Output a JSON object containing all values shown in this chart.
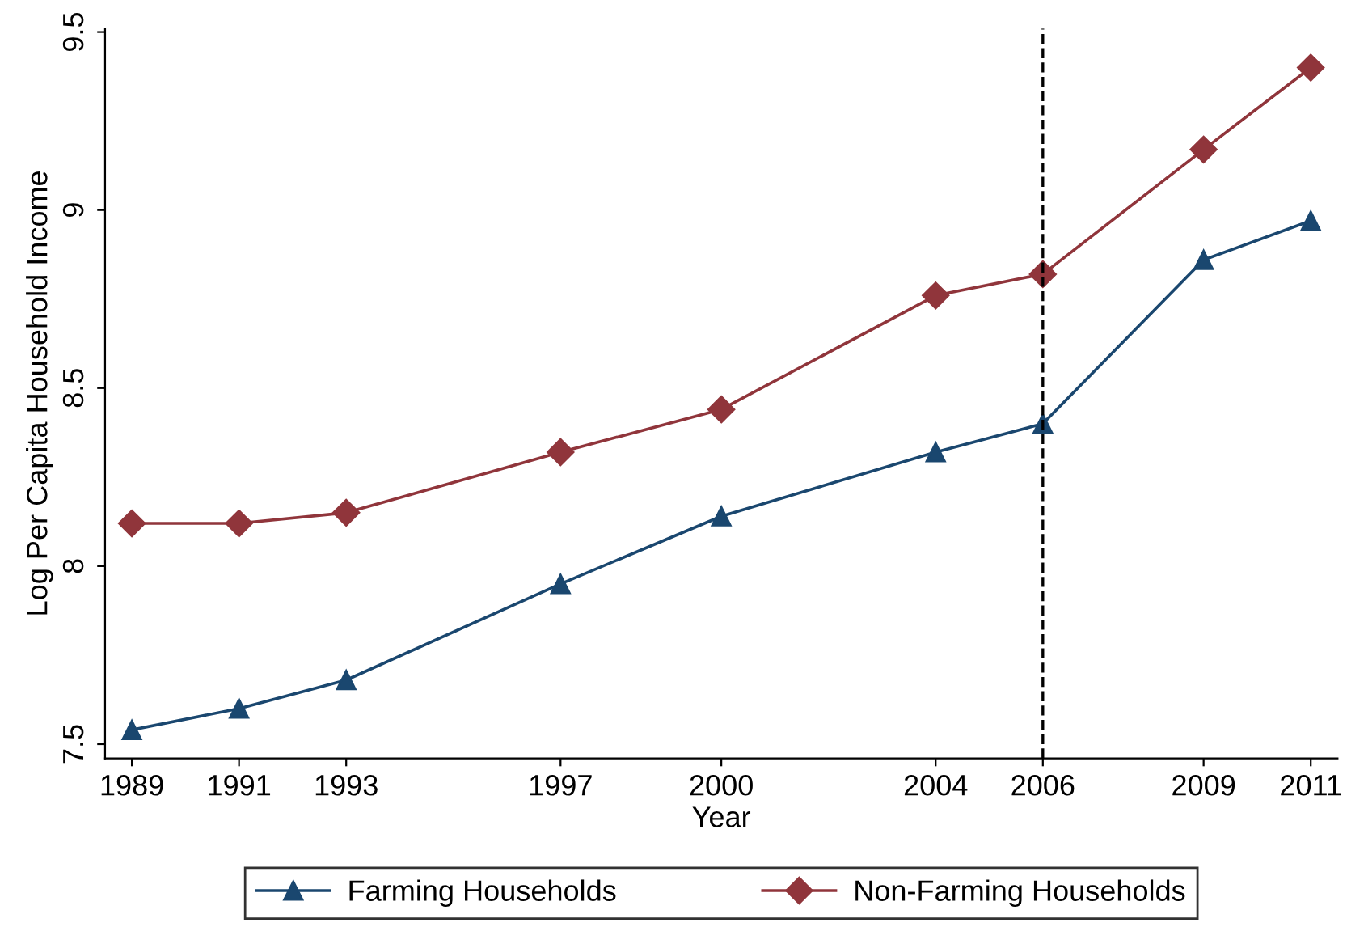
{
  "chart_data": {
    "type": "line",
    "xlabel": "Year",
    "ylabel": "Log Per Capita Household Income",
    "x": [
      1989,
      1991,
      1993,
      1997,
      2000,
      2004,
      2006,
      2009,
      2011
    ],
    "series": [
      {
        "name": "Farming Households",
        "color": "#1a476f",
        "marker": "triangle",
        "values": [
          7.54,
          7.6,
          7.68,
          7.95,
          8.14,
          8.32,
          8.4,
          8.86,
          8.97
        ]
      },
      {
        "name": "Non-Farming Households",
        "color": "#90353b",
        "marker": "diamond",
        "values": [
          8.12,
          8.12,
          8.15,
          8.32,
          8.44,
          8.76,
          8.82,
          9.17,
          9.4
        ]
      }
    ],
    "xlim": [
      1988.5,
      2011.5
    ],
    "ylim": [
      7.46,
      9.51
    ],
    "xticks": [
      1989,
      1991,
      1993,
      1997,
      2000,
      2004,
      2006,
      2009,
      2011
    ],
    "yticks": [
      7.5,
      8,
      8.5,
      9,
      9.5
    ],
    "ref_lines": [
      {
        "axis": "x",
        "value": 2006,
        "color": "#000000",
        "line_style": "dashed"
      }
    ],
    "grid": false,
    "legend": "bottom",
    "line_style": "solid"
  }
}
